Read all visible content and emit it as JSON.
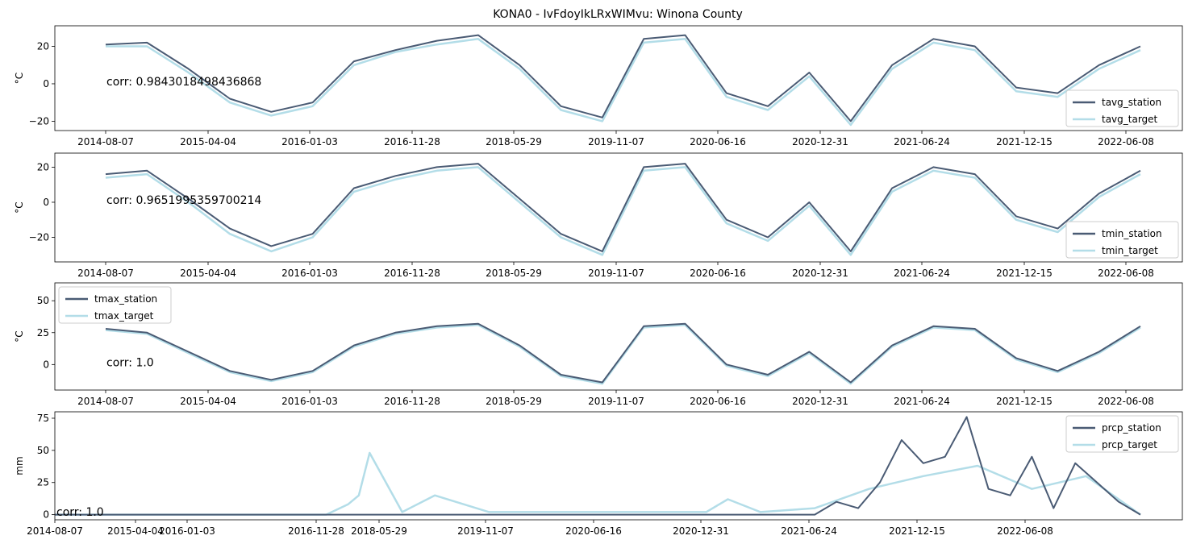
{
  "title": "KONA0 - IvFdoyIkLRxWIMvu: Winona County",
  "colors": {
    "station": "#4a5b74",
    "target": "#b3dde8",
    "overlap": "#8ab5c8",
    "axis": "#000000"
  },
  "chart_data": [
    {
      "type": "line",
      "ylabel": "°C",
      "ylim": [
        -25,
        31
      ],
      "yticks": [
        "20",
        "0",
        "−20"
      ],
      "ytick_values": [
        20,
        0,
        -20
      ],
      "xticks": [
        "2014-08-07",
        "2015-04-04",
        "2016-01-03",
        "2016-11-28",
        "2018-05-29",
        "2019-11-07",
        "2020-06-16",
        "2020-12-31",
        "2021-06-24",
        "2021-12-15",
        "2022-06-08"
      ],
      "annotation": "corr: 0.9843018498436868",
      "legend": [
        "tavg_station",
        "tavg_target"
      ],
      "legend_loc": "lower right",
      "series": [
        {
          "name": "tavg_station",
          "x": [
            0,
            4,
            8,
            12,
            16,
            20,
            24,
            28,
            32,
            36,
            40,
            44,
            48,
            52,
            56,
            60,
            64,
            68,
            72,
            76,
            80,
            84,
            88,
            92,
            96,
            100
          ],
          "values": [
            21,
            22,
            8,
            -8,
            -15,
            -10,
            12,
            18,
            23,
            26,
            10,
            -12,
            -18,
            24,
            26,
            -5,
            -12,
            6,
            -20,
            10,
            24,
            20,
            -2,
            -5,
            10,
            20
          ]
        },
        {
          "name": "tavg_target",
          "x": [
            0,
            4,
            8,
            12,
            16,
            20,
            24,
            28,
            32,
            36,
            40,
            44,
            48,
            52,
            56,
            60,
            64,
            68,
            72,
            76,
            80,
            84,
            88,
            92,
            96,
            100
          ],
          "values": [
            20,
            20,
            6,
            -10,
            -17,
            -12,
            10,
            17,
            21,
            24,
            8,
            -14,
            -20,
            22,
            24,
            -7,
            -14,
            4,
            -22,
            8,
            22,
            18,
            -4,
            -7,
            8,
            18
          ]
        }
      ]
    },
    {
      "type": "line",
      "ylabel": "°C",
      "ylim": [
        -34,
        28
      ],
      "yticks": [
        "20",
        "0",
        "−20"
      ],
      "ytick_values": [
        20,
        0,
        -20
      ],
      "xticks": [
        "2014-08-07",
        "2015-04-04",
        "2016-01-03",
        "2016-11-28",
        "2018-05-29",
        "2019-11-07",
        "2020-06-16",
        "2020-12-31",
        "2021-06-24",
        "2021-12-15",
        "2022-06-08"
      ],
      "annotation": "corr: 0.9651995359700214",
      "legend": [
        "tmin_station",
        "tmin_target"
      ],
      "legend_loc": "lower right",
      "series": [
        {
          "name": "tmin_station",
          "x": [
            0,
            4,
            8,
            12,
            16,
            20,
            24,
            28,
            32,
            36,
            40,
            44,
            48,
            52,
            56,
            60,
            64,
            68,
            72,
            76,
            80,
            84,
            88,
            92,
            96,
            100
          ],
          "values": [
            16,
            18,
            2,
            -15,
            -25,
            -18,
            8,
            15,
            20,
            22,
            2,
            -18,
            -28,
            20,
            22,
            -10,
            -20,
            0,
            -28,
            8,
            20,
            16,
            -8,
            -15,
            5,
            18
          ]
        },
        {
          "name": "tmin_target",
          "x": [
            0,
            4,
            8,
            12,
            16,
            20,
            24,
            28,
            32,
            36,
            40,
            44,
            48,
            52,
            56,
            60,
            64,
            68,
            72,
            76,
            80,
            84,
            88,
            92,
            96,
            100
          ],
          "values": [
            14,
            16,
            0,
            -18,
            -28,
            -20,
            6,
            13,
            18,
            20,
            0,
            -20,
            -30,
            18,
            20,
            -12,
            -22,
            -2,
            -30,
            6,
            18,
            14,
            -10,
            -17,
            3,
            16
          ]
        }
      ]
    },
    {
      "type": "line",
      "ylabel": "°C",
      "ylim": [
        -20,
        64
      ],
      "yticks": [
        "50",
        "25",
        "0"
      ],
      "ytick_values": [
        50,
        25,
        0
      ],
      "xticks": [
        "2014-08-07",
        "2015-04-04",
        "2016-01-03",
        "2016-11-28",
        "2018-05-29",
        "2019-11-07",
        "2020-06-16",
        "2020-12-31",
        "2021-06-24",
        "2021-12-15",
        "2022-06-08"
      ],
      "annotation": "corr: 1.0",
      "legend": [
        "tmax_station",
        "tmax_target"
      ],
      "legend_loc": "upper left",
      "series": [
        {
          "name": "tmax_station",
          "x": [
            0,
            4,
            8,
            12,
            16,
            20,
            24,
            28,
            32,
            36,
            40,
            44,
            48,
            52,
            56,
            60,
            64,
            68,
            72,
            76,
            80,
            84,
            88,
            92,
            96,
            100
          ],
          "values": [
            28,
            25,
            10,
            -5,
            -12,
            -5,
            15,
            25,
            30,
            32,
            15,
            -8,
            -14,
            30,
            32,
            0,
            -8,
            10,
            -14,
            15,
            30,
            28,
            5,
            -5,
            10,
            30
          ]
        },
        {
          "name": "tmax_target",
          "x": [
            0,
            4,
            8,
            12,
            16,
            20,
            24,
            28,
            32,
            36,
            40,
            44,
            48,
            52,
            56,
            60,
            64,
            68,
            72,
            76,
            80,
            84,
            88,
            92,
            96,
            100
          ],
          "values": [
            27,
            24,
            9,
            -6,
            -13,
            -6,
            14,
            24,
            29,
            31,
            14,
            -9,
            -15,
            29,
            31,
            -1,
            -9,
            9,
            -15,
            14,
            29,
            27,
            4,
            -6,
            9,
            29
          ]
        }
      ]
    },
    {
      "type": "line",
      "ylabel": "mm",
      "ylim": [
        -4,
        80
      ],
      "yticks": [
        "75",
        "50",
        "25",
        "0"
      ],
      "ytick_values": [
        75,
        50,
        25,
        0
      ],
      "xticks": [
        "2014-08-07",
        "2015-04-04",
        "2016-01-03",
        "2016-11-28",
        "2018-05-29",
        "2019-11-07",
        "2020-06-16",
        "2020-12-31",
        "2021-06-24",
        "2021-12-15",
        "2022-06-08"
      ],
      "annotation": "corr: 1.0",
      "legend": [
        "prcp_station",
        "prcp_target"
      ],
      "legend_loc": "upper right",
      "series": [
        {
          "name": "prcp_station",
          "x": [
            0,
            70,
            72,
            74,
            76,
            78,
            80,
            82,
            84,
            86,
            88,
            90,
            92,
            94,
            96,
            98,
            100
          ],
          "values": [
            0,
            0,
            10,
            5,
            25,
            58,
            40,
            45,
            76,
            20,
            15,
            45,
            5,
            40,
            25,
            10,
            0
          ]
        },
        {
          "name": "prcp_target",
          "x": [
            0,
            25,
            27,
            28,
            29,
            32,
            35,
            40,
            45,
            50,
            55,
            60,
            62,
            65,
            70,
            75,
            80,
            85,
            90,
            95,
            100
          ],
          "values": [
            0,
            0,
            8,
            15,
            48,
            2,
            15,
            2,
            2,
            2,
            2,
            2,
            12,
            2,
            5,
            20,
            30,
            38,
            20,
            30,
            0
          ]
        }
      ]
    }
  ]
}
